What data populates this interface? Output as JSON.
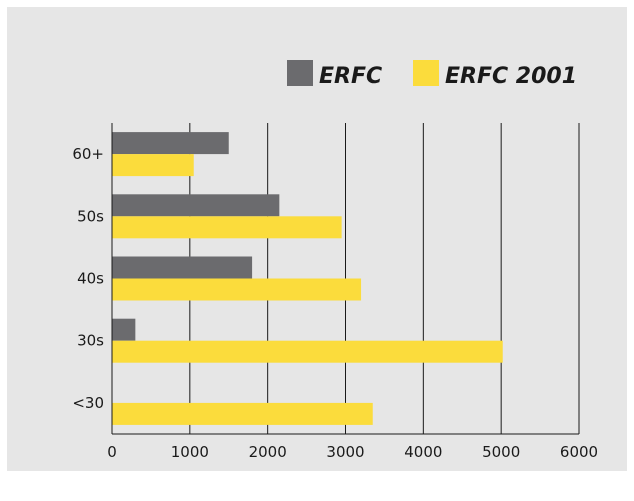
{
  "chart_data": {
    "type": "bar",
    "orientation": "horizontal",
    "categories": [
      "60+",
      "50s",
      "40s",
      "30s",
      "<30"
    ],
    "series": [
      {
        "name": "ERFC",
        "color": "#6b6b6e",
        "values": [
          1500,
          2150,
          1800,
          300,
          0
        ]
      },
      {
        "name": "ERFC 2001",
        "color": "#fbdc3c",
        "values": [
          1050,
          2950,
          3200,
          5020,
          3350
        ]
      }
    ],
    "xlim": [
      0,
      6000
    ],
    "xticks": [
      0,
      1000,
      2000,
      3000,
      4000,
      5000,
      6000
    ],
    "grid": "vertical",
    "legend": "top-right",
    "title": "",
    "xlabel": "",
    "ylabel": ""
  }
}
